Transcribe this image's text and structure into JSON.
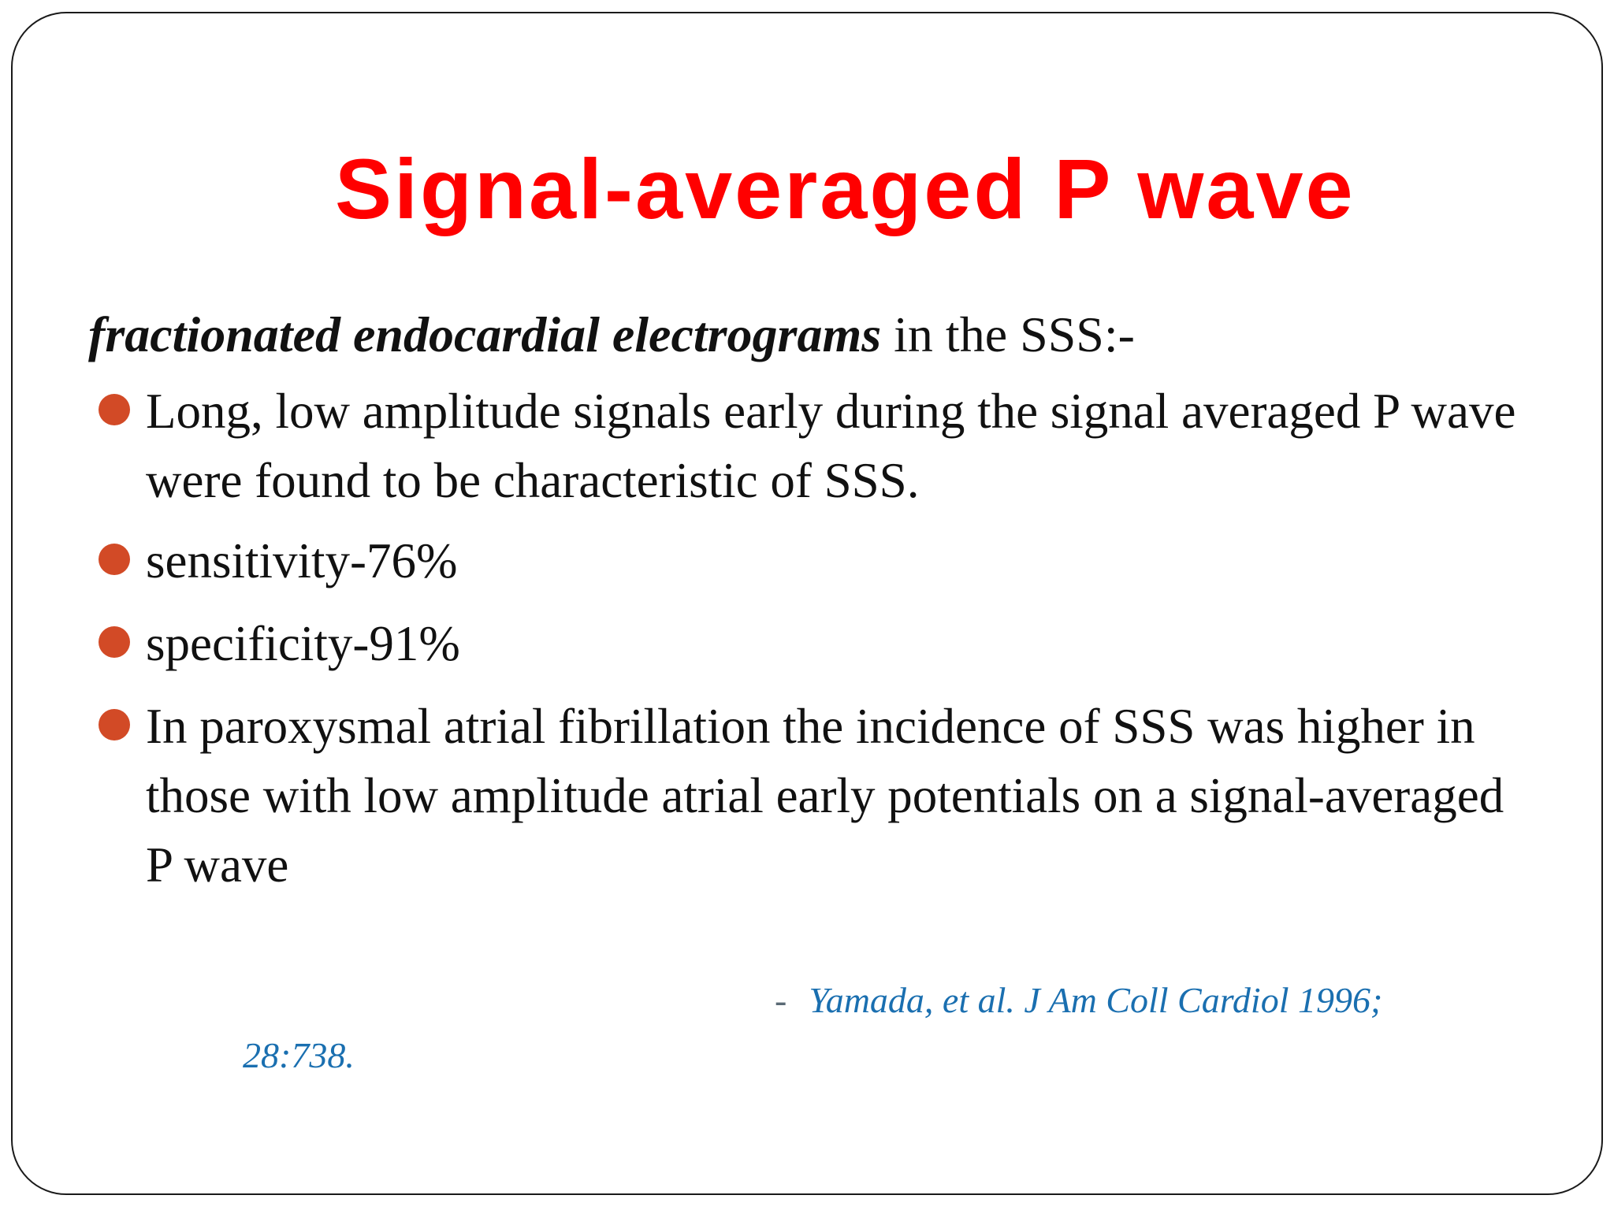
{
  "slide": {
    "title": "Signal-averaged P wave",
    "subheading": {
      "emphasis": "fractionated endocardial electrograms",
      "rest": " in the SSS:-"
    },
    "bullets": [
      {
        "text": " Long, low amplitude signals early during the signal averaged P wave were found to be characteristic of SSS."
      },
      {
        "text": "sensitivity-76%"
      },
      {
        "text": " specificity-91%"
      },
      {
        "text": "In paroxysmal atrial fibrillation the incidence of SSS was higher in those with low amplitude atrial early potentials on a signal-averaged P wave"
      }
    ],
    "citation": {
      "dash": "-",
      "line1": "Yamada, et al. J Am Coll Cardiol 1996;",
      "line2": "28:738."
    },
    "colors": {
      "title": "#ff0000",
      "bullet": "#d24a26",
      "citation": "#1a6fb0",
      "body_text": "#111111"
    }
  }
}
